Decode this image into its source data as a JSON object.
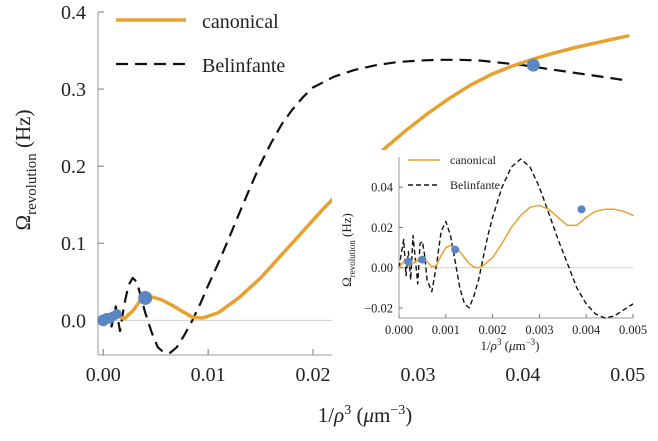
{
  "chart_data": [
    {
      "type": "line",
      "title": "",
      "xlabel": "1/ρ³ (μm⁻³)",
      "xlabel_parts": {
        "pre": "1/",
        "rho": "ρ",
        "sup": "3",
        "mid": " (",
        "mu": "μ",
        "unit": "m",
        "exp": "−3",
        "post": ")"
      },
      "ylabel": "Ωrevolution (Hz)",
      "ylabel_parts": {
        "omega": "Ω",
        "sub": "revolution",
        "unit": " (Hz)"
      },
      "xlim": [
        -0.0005,
        0.0505
      ],
      "ylim": [
        -0.045,
        0.4
      ],
      "x_ticks": [
        "0.00",
        "0.01",
        "0.02",
        "0.03",
        "0.04",
        "0.05"
      ],
      "y_ticks": [
        "0.0",
        "0.1",
        "0.2",
        "0.3",
        "0.4"
      ],
      "grid": false,
      "legend_position": "top-left",
      "series": [
        {
          "name": "canonical",
          "color": "#e8a12e",
          "style": "solid",
          "x": [
            0.0,
            0.0008,
            0.0014,
            0.002,
            0.0028,
            0.0035,
            0.004,
            0.0047,
            0.0055,
            0.0065,
            0.0075,
            0.0085,
            0.0095,
            0.011,
            0.013,
            0.015,
            0.017,
            0.019,
            0.021,
            0.023,
            0.025,
            0.027,
            0.029,
            0.031,
            0.033,
            0.035,
            0.037,
            0.039,
            0.041,
            0.043,
            0.045,
            0.047,
            0.049,
            0.05
          ],
          "y": [
            0.0,
            0.002,
            0.006,
            0.002,
            0.012,
            0.025,
            0.029,
            0.03,
            0.027,
            0.02,
            0.012,
            0.004,
            0.003,
            0.01,
            0.03,
            0.055,
            0.085,
            0.115,
            0.145,
            0.173,
            0.2,
            0.225,
            0.248,
            0.269,
            0.288,
            0.305,
            0.319,
            0.33,
            0.339,
            0.347,
            0.354,
            0.36,
            0.366,
            0.369
          ]
        },
        {
          "name": "Belinfante",
          "color": "#111111",
          "style": "dashed",
          "x": [
            0.0,
            0.0004,
            0.0008,
            0.0012,
            0.0016,
            0.002,
            0.0024,
            0.0028,
            0.0032,
            0.0036,
            0.004,
            0.0046,
            0.0052,
            0.0058,
            0.0064,
            0.007,
            0.0077,
            0.0085,
            0.0093,
            0.01,
            0.011,
            0.012,
            0.013,
            0.014,
            0.015,
            0.016,
            0.017,
            0.018,
            0.019,
            0.02,
            0.022,
            0.024,
            0.026,
            0.028,
            0.03,
            0.032,
            0.034,
            0.036,
            0.038,
            0.04,
            0.042,
            0.044,
            0.046,
            0.048,
            0.05
          ],
          "y": [
            0.0,
            0.008,
            -0.008,
            0.018,
            -0.014,
            0.02,
            0.045,
            0.055,
            0.05,
            0.03,
            0.01,
            -0.015,
            -0.035,
            -0.042,
            -0.042,
            -0.035,
            -0.02,
            0.0,
            0.023,
            0.045,
            0.075,
            0.107,
            0.14,
            0.172,
            0.203,
            0.23,
            0.254,
            0.273,
            0.289,
            0.302,
            0.316,
            0.325,
            0.331,
            0.335,
            0.337,
            0.338,
            0.338,
            0.337,
            0.334,
            0.331,
            0.327,
            0.323,
            0.319,
            0.315,
            0.311
          ]
        }
      ],
      "points": {
        "color": "#5b86c4",
        "x": [
          0.0,
          0.0003,
          0.0006,
          0.0009,
          0.0013,
          0.004,
          0.041
        ],
        "y": [
          0.0,
          0.003,
          0.002,
          0.005,
          0.008,
          0.029,
          0.331
        ],
        "r": [
          6,
          5,
          5,
          5,
          5,
          7,
          6.5
        ]
      }
    },
    {
      "type": "line",
      "title": "",
      "xlabel": "1/ρ³ (μm⁻³)",
      "xlabel_parts": {
        "pre": "1/",
        "rho": "ρ",
        "sup": "3",
        "mid": " (",
        "mu": "μ",
        "unit": "m",
        "exp": "−3",
        "post": ")"
      },
      "ylabel": "Ωrevolution (Hz)",
      "ylabel_parts": {
        "omega": "Ω",
        "sub": "revolution",
        "unit": " (Hz)"
      },
      "xlim": [
        0.0,
        0.005
      ],
      "ylim": [
        -0.025,
        0.055
      ],
      "x_ticks": [
        "0.000",
        "0.001",
        "0.002",
        "0.003",
        "0.004",
        "0.005"
      ],
      "y_ticks": [
        "−0.02",
        "0.00",
        "0.02",
        "0.04"
      ],
      "grid": false,
      "legend_position": "top-left",
      "series": [
        {
          "name": "canonical",
          "color": "#e8a12e",
          "style": "solid",
          "x": [
            0.0,
            0.0001,
            0.0002,
            0.0003,
            0.0004,
            0.0005,
            0.0006,
            0.0007,
            0.0008,
            0.0009,
            0.001,
            0.0011,
            0.0012,
            0.0013,
            0.0014,
            0.0015,
            0.0016,
            0.0017,
            0.0018,
            0.0019,
            0.002,
            0.0022,
            0.0024,
            0.0026,
            0.0028,
            0.003,
            0.0032,
            0.0034,
            0.0036,
            0.0038,
            0.004,
            0.0042,
            0.0044,
            0.0046,
            0.0048,
            0.005
          ],
          "y": [
            0.0,
            0.003,
            0.001,
            0.002,
            0.004,
            0.004,
            0.003,
            0.0005,
            0.001,
            0.006,
            0.01,
            0.011,
            0.01,
            0.008,
            0.005,
            0.002,
            0.0003,
            0.0,
            0.001,
            0.003,
            0.005,
            0.012,
            0.02,
            0.026,
            0.03,
            0.031,
            0.029,
            0.025,
            0.021,
            0.021,
            0.025,
            0.028,
            0.029,
            0.029,
            0.028,
            0.026
          ]
        },
        {
          "name": "Belinfante",
          "color": "#111111",
          "style": "dashed",
          "x": [
            0.0,
            0.0001,
            0.00015,
            0.0002,
            0.00025,
            0.0003,
            0.00035,
            0.0004,
            0.00045,
            0.0005,
            0.00055,
            0.0006,
            0.0007,
            0.0008,
            0.0009,
            0.001,
            0.0011,
            0.0012,
            0.0013,
            0.0014,
            0.0015,
            0.0016,
            0.0017,
            0.0018,
            0.0019,
            0.002,
            0.0022,
            0.0024,
            0.0026,
            0.0028,
            0.003,
            0.0032,
            0.0034,
            0.0036,
            0.0038,
            0.004,
            0.0042,
            0.0044,
            0.0046,
            0.0048,
            0.005
          ],
          "y": [
            0.0,
            0.014,
            -0.004,
            0.008,
            -0.006,
            0.016,
            0.004,
            -0.008,
            0.012,
            0.013,
            0.006,
            -0.006,
            -0.012,
            0.001,
            0.018,
            0.023,
            0.016,
            0.003,
            -0.01,
            -0.018,
            -0.02,
            -0.014,
            -0.006,
            0.005,
            0.016,
            0.025,
            0.04,
            0.05,
            0.054,
            0.05,
            0.04,
            0.027,
            0.014,
            0.002,
            -0.01,
            -0.018,
            -0.023,
            -0.025,
            -0.024,
            -0.021,
            -0.018
          ]
        }
      ],
      "points": {
        "color": "#5b86c4",
        "x": [
          0.0002,
          0.0005,
          0.0012,
          0.0039
        ],
        "y": [
          0.003,
          0.004,
          0.009,
          0.029
        ],
        "r": [
          4,
          4,
          4,
          4
        ]
      }
    }
  ]
}
